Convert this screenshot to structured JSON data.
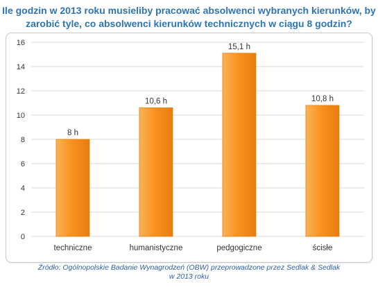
{
  "title": {
    "line1": "Ile godzin w 2013 roku musieliby pracować absolwenci wybranych kierunków, by",
    "line2": "zarobić tyle, co absolwenci kierunków technicznych w ciągu 8 godzin?"
  },
  "source": {
    "line1": "Źródło: Ogólnopolskie Badanie Wynagrodzeń (OBW) przeprowadzone przez Sedlak & Sedlak",
    "line2": "w 2013 roku"
  },
  "colors": {
    "bar_top": "#fbb457",
    "bar_mid": "#f7931e",
    "bar_bottom": "#e87b10",
    "gridline": "#d9d9d9",
    "axis_text": "#333333",
    "title": "#2e74b5"
  },
  "chart_data": {
    "type": "bar",
    "categories": [
      "techniczne",
      "humanistyczne",
      "pedgogiczne",
      "ścisłe"
    ],
    "values": [
      8,
      10.6,
      15.1,
      10.8
    ],
    "data_labels": [
      "8 h",
      "10,6 h",
      "15,1 h",
      "10,8 h"
    ],
    "y_ticks": [
      "0",
      "2",
      "4",
      "6",
      "8",
      "10",
      "12",
      "14",
      "16"
    ],
    "ylim": [
      0,
      16
    ],
    "grid": true,
    "legend": "none"
  }
}
